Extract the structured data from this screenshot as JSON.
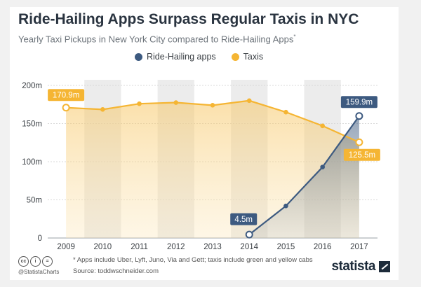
{
  "header": {
    "title": "Ride-Hailing Apps Surpass Regular Taxis in NYC",
    "subtitle": "Yearly Taxi Pickups in New York City compared to Ride-Hailing Apps",
    "subtitle_mark": "*"
  },
  "legend": [
    {
      "label": "Ride-Hailing apps",
      "color": "#3d5a80"
    },
    {
      "label": "Taxis",
      "color": "#f5b533"
    }
  ],
  "chart_data": {
    "type": "line",
    "title": "Ride-Hailing Apps Surpass Regular Taxis in NYC",
    "xlabel": "",
    "ylabel": "",
    "categories": [
      "2009",
      "2010",
      "2011",
      "2012",
      "2013",
      "2014",
      "2015",
      "2016",
      "2017"
    ],
    "ylim": [
      0,
      200
    ],
    "yticks": [
      0,
      50,
      100,
      150,
      200
    ],
    "ytick_labels": [
      "0",
      "50m",
      "100m",
      "150m",
      "200m"
    ],
    "series": [
      {
        "name": "Taxis",
        "color": "#f5b533",
        "values": [
          170.9,
          168.5,
          176,
          177.5,
          174,
          180,
          165,
          147,
          125.5
        ]
      },
      {
        "name": "Ride-Hailing apps",
        "color": "#3d5a80",
        "values": [
          null,
          null,
          null,
          null,
          null,
          4.5,
          42,
          93,
          159.9
        ]
      }
    ],
    "annotations": [
      {
        "text": "170.9m",
        "series": "Taxis",
        "index": 0
      },
      {
        "text": "125.5m",
        "series": "Taxis",
        "index": 8
      },
      {
        "text": "4.5m",
        "series": "Ride-Hailing apps",
        "index": 5
      },
      {
        "text": "159.9m",
        "series": "Ride-Hailing apps",
        "index": 8
      }
    ]
  },
  "footer": {
    "cc_icons": [
      "cc",
      "i",
      "="
    ],
    "brand_small": "@StatistaCharts",
    "note": "* Apps include Uber, Lyft, Juno, Via and Gett; taxis include green and yellow cabs",
    "source": "Source: toddwschneider.com",
    "brand": "statista"
  }
}
